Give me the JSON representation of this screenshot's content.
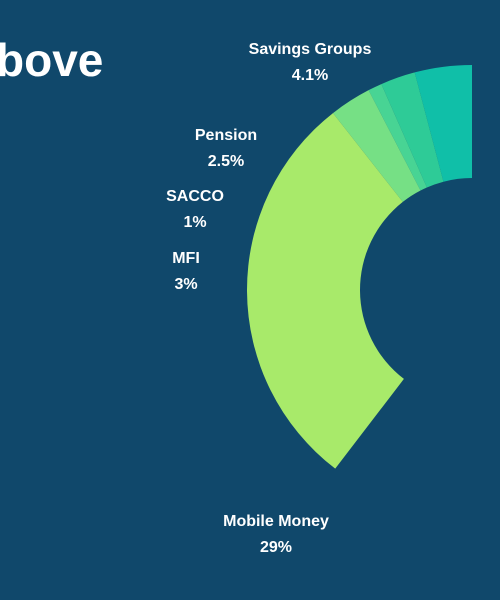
{
  "chart_data": {
    "type": "donut",
    "title": "bove",
    "categories": [
      "Savings Groups",
      "Pension",
      "SACCO",
      "MFI",
      "Mobile Money"
    ],
    "values": [
      4.1,
      2.5,
      1,
      3,
      29
    ],
    "value_labels": [
      "4.1%",
      "2.5%",
      "1%",
      "3%",
      "29%"
    ],
    "colors": [
      "#10bfa8",
      "#2ecb97",
      "#48d494",
      "#76e085",
      "#a8ea6a"
    ]
  }
}
